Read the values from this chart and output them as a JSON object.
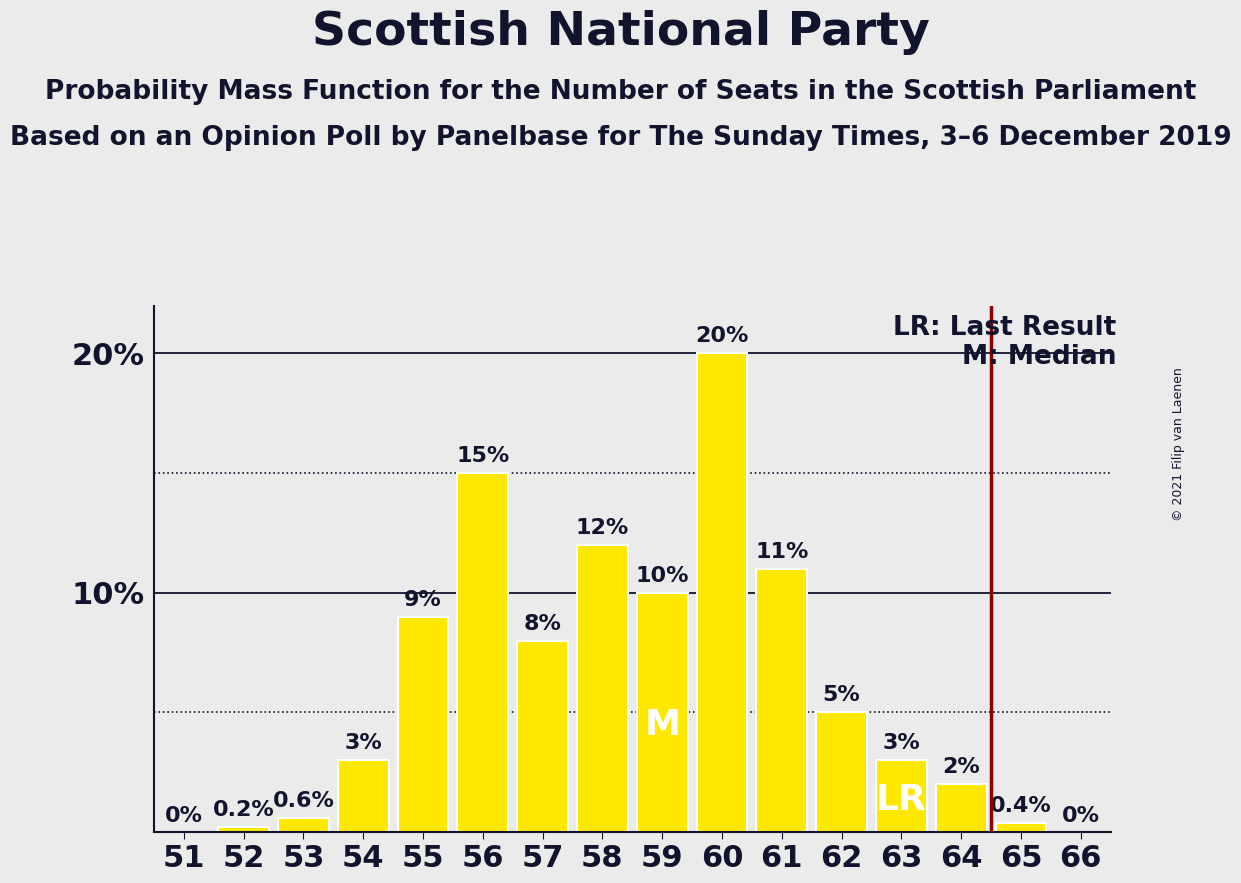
{
  "title": "Scottish National Party",
  "subtitle1": "Probability Mass Function for the Number of Seats in the Scottish Parliament",
  "subtitle2": "Based on an Opinion Poll by Panelbase for The Sunday Times, 3–6 December 2019",
  "copyright": "© 2021 Filip van Laenen",
  "categories": [
    51,
    52,
    53,
    54,
    55,
    56,
    57,
    58,
    59,
    60,
    61,
    62,
    63,
    64,
    65,
    66
  ],
  "values": [
    0.0,
    0.2,
    0.6,
    3.0,
    9.0,
    15.0,
    8.0,
    12.0,
    10.0,
    20.0,
    11.0,
    5.0,
    3.0,
    2.0,
    0.4,
    0.0
  ],
  "bar_color": "#FFE800",
  "bar_edge_color": "#FFFFFF",
  "background_color": "#EBEBEB",
  "text_color": "#12142e",
  "label_format": [
    "0%",
    "0.2%",
    "0.6%",
    "3%",
    "9%",
    "15%",
    "8%",
    "12%",
    "10%",
    "20%",
    "11%",
    "5%",
    "3%",
    "2%",
    "0.4%",
    "0%"
  ],
  "last_result_seat": 64,
  "median_seat": 59,
  "median_label": "M",
  "lr_label": "LR",
  "lr_label_seat": 63,
  "legend_lr": "LR: Last Result",
  "legend_m": "M: Median",
  "last_result_color": "#8B0000",
  "dotted_line_values": [
    5.0,
    15.0
  ],
  "solid_gridline_values": [
    10.0,
    20.0
  ],
  "ylim": [
    0,
    22
  ],
  "title_fontsize": 34,
  "subtitle_fontsize": 19,
  "tick_fontsize": 22,
  "bar_label_fontsize": 16,
  "legend_fontsize": 19,
  "median_label_fontsize": 26,
  "lr_label_fontsize": 26,
  "ytick_positions": [
    10,
    20
  ],
  "ytick_labels": [
    "10%",
    "20%"
  ]
}
